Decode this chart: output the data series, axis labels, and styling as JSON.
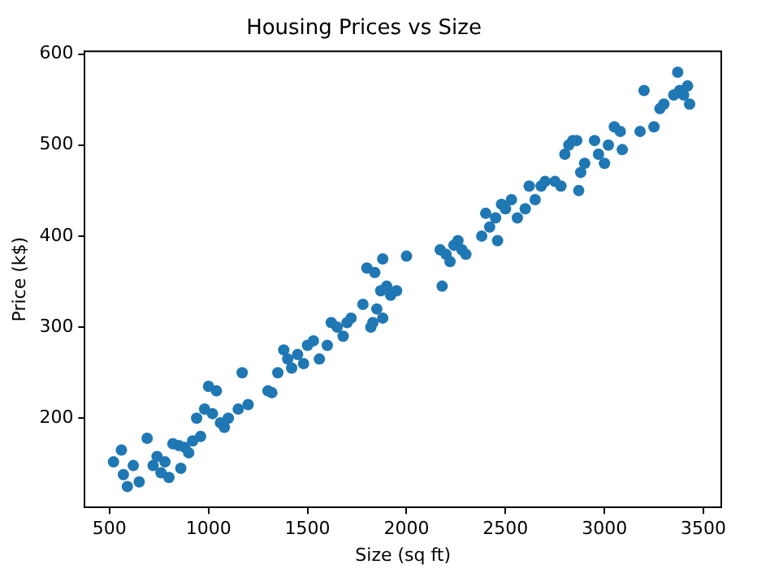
{
  "chart_data": {
    "type": "scatter",
    "title": "Housing Prices vs Size",
    "xlabel": "Size (sq ft)",
    "ylabel": "Price (k$)",
    "xlim": [
      375,
      3590
    ],
    "ylim": [
      102,
      603
    ],
    "xticks": [
      500,
      1000,
      1500,
      2000,
      2500,
      3000,
      3500
    ],
    "yticks": [
      200,
      300,
      400,
      500,
      600
    ],
    "grid": false,
    "legend": false,
    "marker": "circle",
    "series": [
      {
        "color": "#1f77b4",
        "x": [
          520,
          560,
          570,
          590,
          620,
          650,
          690,
          720,
          740,
          760,
          780,
          800,
          820,
          850,
          860,
          880,
          900,
          920,
          940,
          960,
          980,
          1000,
          1020,
          1040,
          1060,
          1080,
          1100,
          1150,
          1170,
          1200,
          1300,
          1320,
          1350,
          1380,
          1400,
          1420,
          1450,
          1480,
          1500,
          1530,
          1560,
          1600,
          1620,
          1650,
          1680,
          1700,
          1720,
          1780,
          1800,
          1820,
          1840,
          1850,
          1870,
          1880,
          1900,
          1920,
          1950,
          2000,
          1880,
          1830,
          2170,
          2180,
          2200,
          2220,
          2240,
          2260,
          2280,
          2300,
          2380,
          2400,
          2420,
          2450,
          2460,
          2480,
          2500,
          2530,
          2560,
          2600,
          2620,
          2650,
          2680,
          2700,
          2750,
          2780,
          2800,
          2820,
          2840,
          2860,
          2870,
          2880,
          2900,
          2950,
          2970,
          3000,
          3020,
          3050,
          3080,
          3090,
          3180,
          3200,
          3250,
          3280,
          3300,
          3370,
          3400,
          3420,
          3430,
          3380,
          3350
        ],
        "values": [
          152,
          165,
          138,
          125,
          148,
          130,
          178,
          148,
          158,
          140,
          152,
          135,
          172,
          170,
          145,
          168,
          162,
          175,
          200,
          180,
          210,
          235,
          205,
          230,
          195,
          190,
          200,
          210,
          250,
          215,
          230,
          228,
          250,
          275,
          265,
          255,
          270,
          260,
          280,
          285,
          265,
          280,
          305,
          300,
          290,
          305,
          310,
          325,
          365,
          300,
          360,
          320,
          340,
          375,
          345,
          335,
          340,
          378,
          310,
          305,
          385,
          345,
          380,
          372,
          390,
          395,
          385,
          380,
          400,
          425,
          410,
          420,
          395,
          435,
          430,
          440,
          420,
          430,
          455,
          440,
          455,
          460,
          460,
          455,
          490,
          500,
          505,
          505,
          450,
          470,
          480,
          505,
          490,
          480,
          500,
          520,
          515,
          495,
          515,
          560,
          520,
          540,
          545,
          580,
          555,
          565,
          545,
          560,
          555
        ]
      }
    ]
  }
}
